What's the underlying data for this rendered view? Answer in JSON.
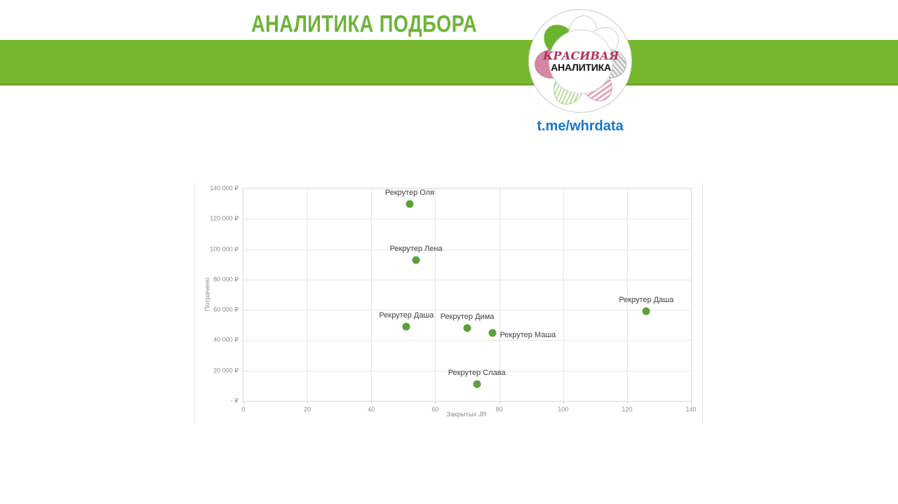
{
  "header": {
    "title": "АНАЛИТИКА ПОДБОРА"
  },
  "logo": {
    "line1": "КРАСИВАЯ",
    "line2": "АНАЛИТИКА",
    "petals": [
      "green-solid-petal",
      "white-petal",
      "white-petal",
      "gray-hatch-petal",
      "pink-stripe-petal",
      "light-green-stripe-petal",
      "rose-solid-petal"
    ]
  },
  "link": {
    "text": "t.me/whrdata"
  },
  "colors": {
    "band_green": "#76b72e",
    "title_green": "#6db339",
    "link_blue": "#1577c9",
    "point_green": "#5aa23a",
    "logo_red": "#b0325c"
  },
  "chart_data": {
    "type": "scatter",
    "title": "",
    "xlabel": "Закрытых JR",
    "ylabel": "Потрачено",
    "xlim": [
      0,
      140
    ],
    "ylim": [
      0,
      140000
    ],
    "grid": true,
    "legend": "none",
    "point_color": "#5aa23a",
    "x_ticks": [
      0,
      20,
      40,
      60,
      80,
      100,
      120,
      140
    ],
    "y_ticks": [
      {
        "value": 0,
        "label": "- ₽"
      },
      {
        "value": 20000,
        "label": "20 000 ₽"
      },
      {
        "value": 40000,
        "label": "40 000 ₽"
      },
      {
        "value": 60000,
        "label": "60 000 ₽"
      },
      {
        "value": 80000,
        "label": "80 000 ₽"
      },
      {
        "value": 100000,
        "label": "100 000 ₽"
      },
      {
        "value": 120000,
        "label": "120 000 ₽"
      },
      {
        "value": 140000,
        "label": "140 000 ₽"
      }
    ],
    "points": [
      {
        "label": "Рекрутер Оля",
        "x": 52,
        "y": 130000,
        "label_position": "top"
      },
      {
        "label": "Рекрутер Лена",
        "x": 54,
        "y": 93000,
        "label_position": "top"
      },
      {
        "label": "Рекрутер Даша",
        "x": 51,
        "y": 49000,
        "label_position": "top"
      },
      {
        "label": "Рекрутер Дима",
        "x": 70,
        "y": 48000,
        "label_position": "top"
      },
      {
        "label": "Рекрутер Маша",
        "x": 78,
        "y": 45000,
        "label_position": "right"
      },
      {
        "label": "Рекрутер Слава",
        "x": 73,
        "y": 11000,
        "label_position": "top"
      },
      {
        "label": "Рекрутер Даша",
        "x": 126,
        "y": 59000,
        "label_position": "top"
      }
    ]
  }
}
